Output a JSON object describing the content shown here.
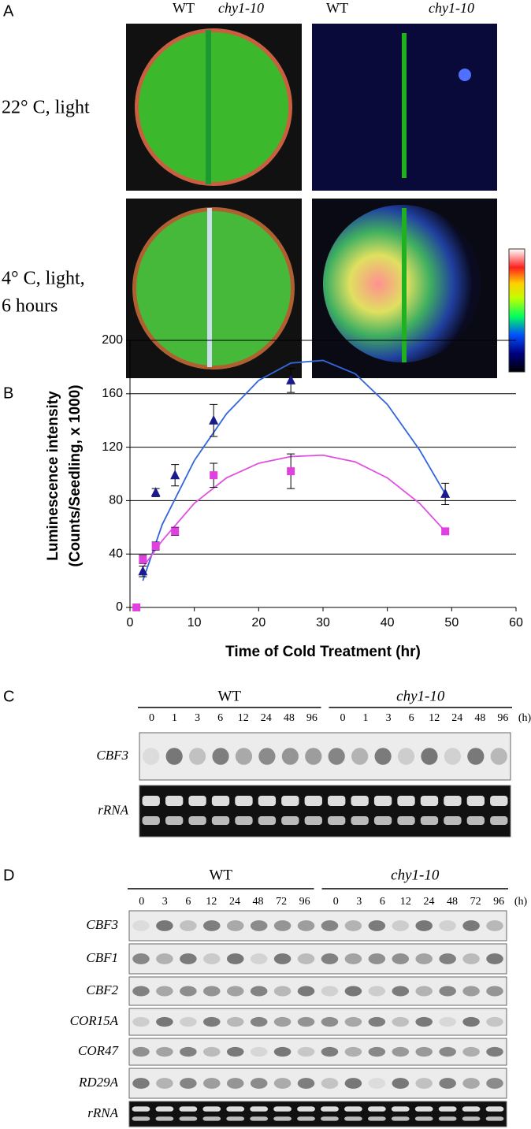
{
  "panel_a": {
    "label": "A",
    "headers": [
      "WT",
      "chy1-10",
      "WT",
      "chy1-10"
    ],
    "rows": [
      [
        "22° C, light"
      ],
      [
        "4° C, light,",
        "6 hours"
      ]
    ]
  },
  "panel_b": {
    "label": "B"
  },
  "chart_data": {
    "type": "scatter",
    "x_label": "Time of Cold Treatment (hr)",
    "y_label": [
      "Luminescence intensity",
      "(Counts/Seedling, x 1000)"
    ],
    "xlim": [
      0,
      60
    ],
    "xticks": [
      0,
      10,
      20,
      30,
      40,
      50,
      60
    ],
    "ylim": [
      0,
      200
    ],
    "yticks": [
      0,
      40,
      80,
      120,
      160,
      200
    ],
    "grid": true,
    "series": [
      {
        "color": "#1a1a8c",
        "marker": "triangle",
        "x": [
          2,
          4,
          7,
          13,
          25,
          49
        ],
        "values": [
          27,
          86,
          99,
          140,
          170,
          85
        ],
        "errors": [
          4,
          3,
          8,
          12,
          9,
          8
        ]
      },
      {
        "color": "#e040e0",
        "marker": "square",
        "x": [
          1,
          2,
          4,
          7,
          13,
          25,
          49
        ],
        "values": [
          0,
          36,
          46,
          57,
          99,
          102,
          57
        ],
        "errors": [
          0,
          3,
          3,
          3,
          9,
          13,
          2
        ]
      }
    ],
    "trendlines": [
      {
        "color": "#3366dd",
        "x": [
          2,
          5,
          10,
          15,
          20,
          25,
          30,
          35,
          40,
          45,
          49
        ],
        "values": [
          20,
          62,
          110,
          145,
          170,
          183,
          185,
          175,
          152,
          118,
          85
        ]
      },
      {
        "color": "#e050e0",
        "x": [
          2,
          5,
          10,
          15,
          20,
          25,
          30,
          35,
          40,
          45,
          49
        ],
        "values": [
          30,
          50,
          78,
          97,
          108,
          113,
          114,
          109,
          97,
          78,
          57
        ]
      }
    ]
  },
  "panel_c": {
    "label": "C",
    "groups": [
      "WT",
      "chy1-10"
    ],
    "times": [
      [
        "0",
        "1",
        "3",
        "6",
        "12",
        "24",
        "48",
        "96"
      ],
      [
        "0",
        "1",
        "3",
        "6",
        "12",
        "24",
        "48",
        "96"
      ]
    ],
    "unit": "(h)",
    "rows": [
      "CBF3",
      "rRNA"
    ]
  },
  "panel_d": {
    "label": "D",
    "groups": [
      "WT",
      "chy1-10"
    ],
    "times": [
      [
        "0",
        "3",
        "6",
        "12",
        "24",
        "48",
        "72",
        "96"
      ],
      [
        "0",
        "3",
        "6",
        "12",
        "24",
        "48",
        "72",
        "96"
      ]
    ],
    "unit": "(h)",
    "rows": [
      "CBF3",
      "CBF1",
      "CBF2",
      "COR15A",
      "COR47",
      "RD29A",
      "rRNA"
    ]
  }
}
